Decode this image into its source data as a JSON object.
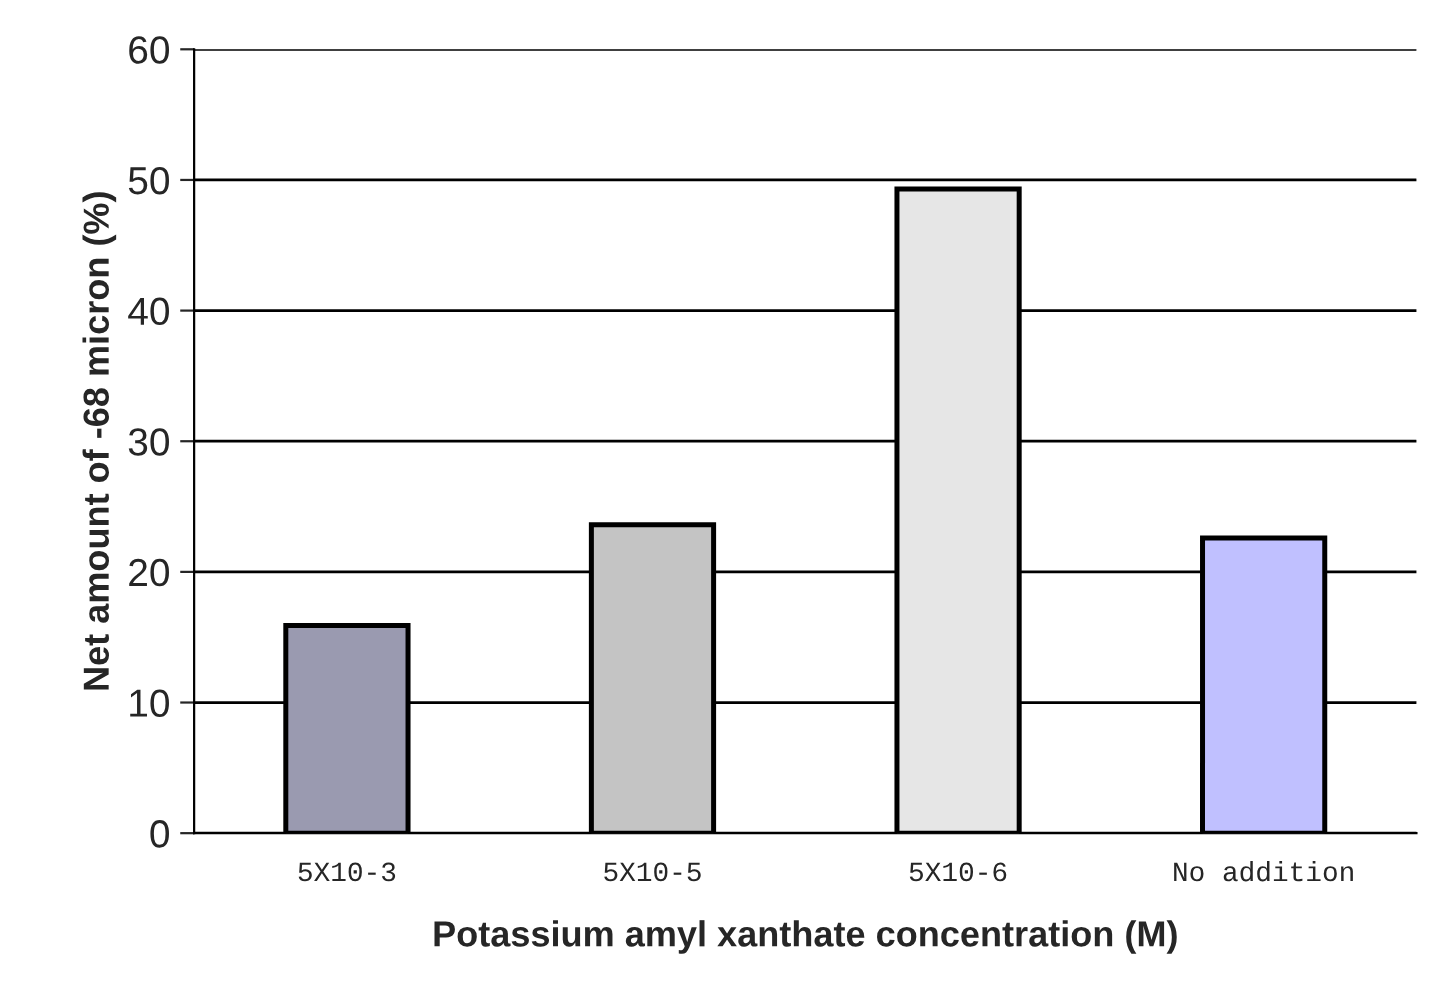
{
  "chart_data": {
    "type": "bar",
    "xlabel": "Potassium amyl xanthate concentration (M)",
    "ylabel": "Net amount of -68 micron (%)",
    "categories": [
      "5X10-3",
      "5X10-5",
      "5X10-6",
      "No addition"
    ],
    "values": [
      15.9,
      23.6,
      49.3,
      22.6
    ],
    "colors": [
      "#9a9ab0",
      "#c4c4c4",
      "#e6e6e6",
      "#c0c0ff"
    ],
    "ylim": [
      0,
      60
    ],
    "yticks": [
      0,
      10,
      20,
      30,
      40,
      50,
      60
    ],
    "grid": "y"
  }
}
